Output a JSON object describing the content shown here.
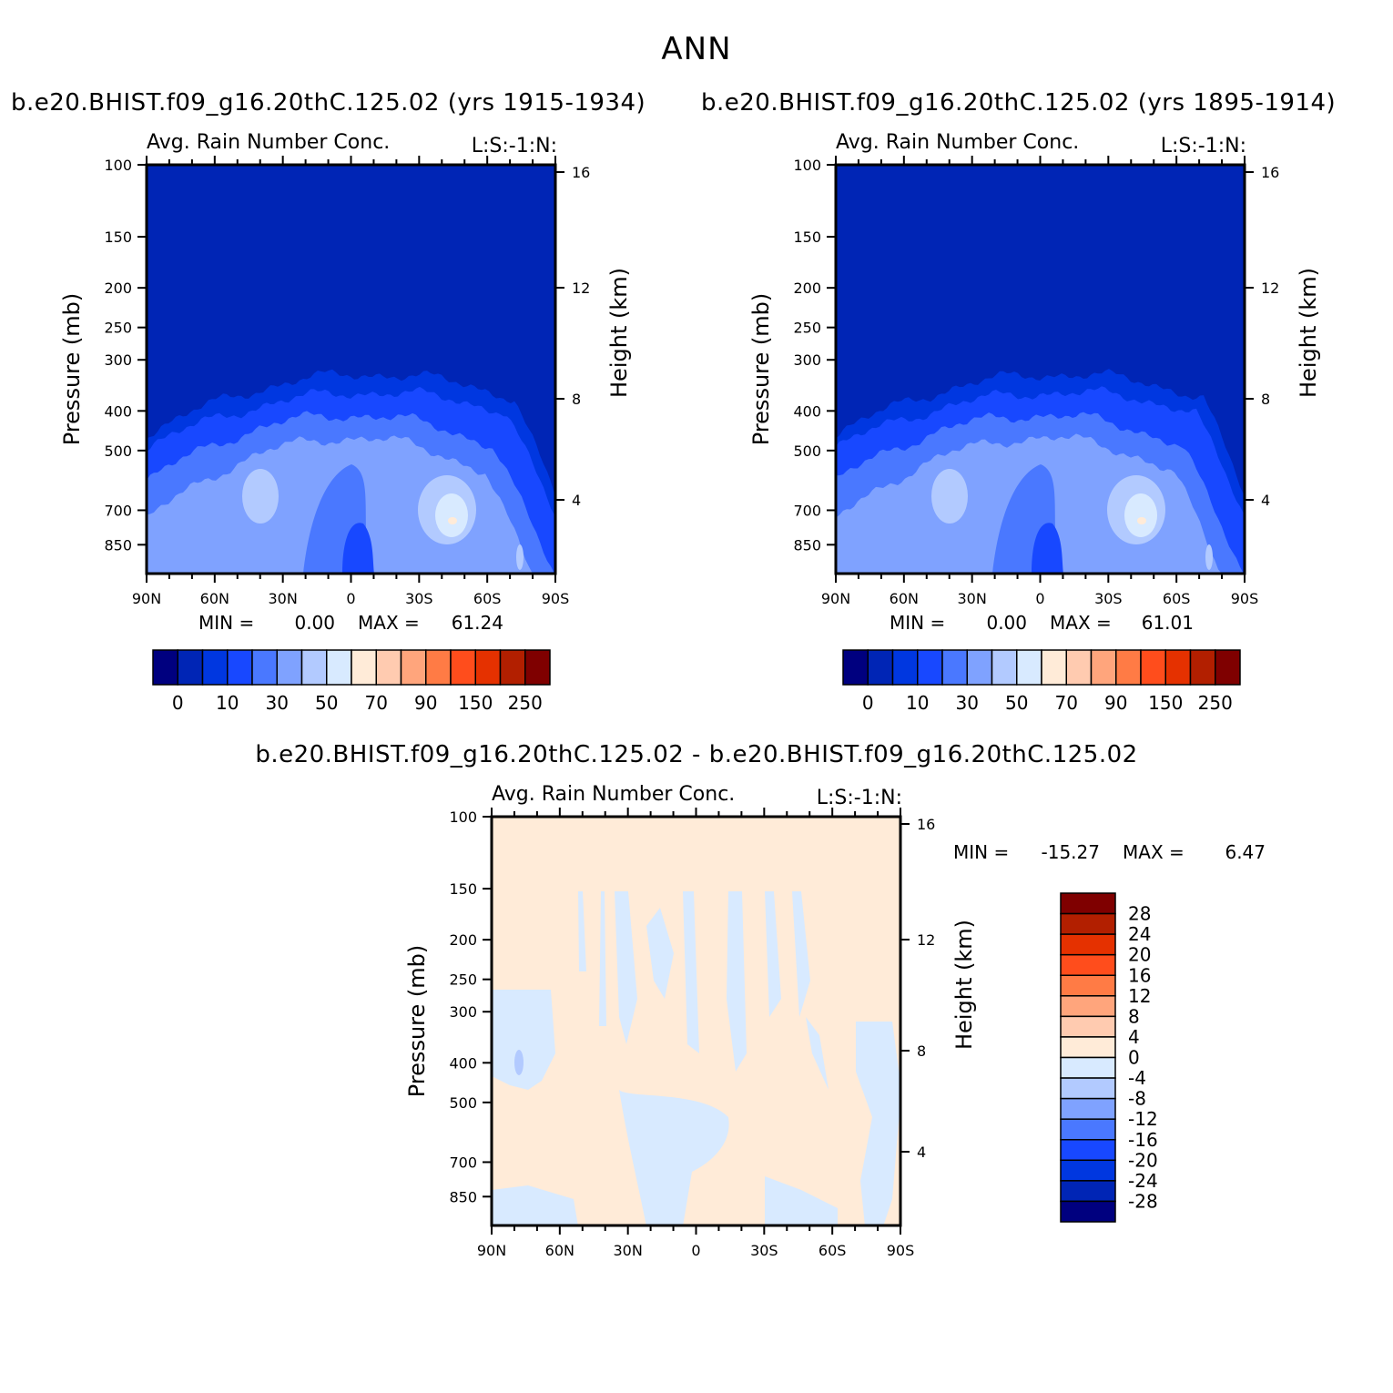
{
  "main_title": "ANN",
  "colors": {
    "abs_palette": [
      "#00007f",
      "#0025b5",
      "#0037e0",
      "#1848ff",
      "#4a78ff",
      "#7fa2ff",
      "#b2caff",
      "#d8eaff",
      "#ffebd8",
      "#ffcbb0",
      "#ffa57c",
      "#ff7b45",
      "#ff4d1c",
      "#e53100",
      "#b21f00",
      "#7f0000"
    ],
    "diff_palette": [
      "#00007f",
      "#0025b5",
      "#0037e0",
      "#1848ff",
      "#4a78ff",
      "#7fa2ff",
      "#b2caff",
      "#d8eaff",
      "#ffebd8",
      "#ffcbb0",
      "#ffa57c",
      "#ff7b45",
      "#ff4d1c",
      "#e53100",
      "#b21f00",
      "#7f0000"
    ]
  },
  "chart_data": [
    {
      "type": "heatmap",
      "case_title": "b.e20.BHIST.f09_g16.20thC.125.02 (yrs 1915-1934)",
      "subtitle": "Avg. Rain Number Conc.",
      "code": "L:S:-1:N:",
      "xlabel": "",
      "ylabel": "Pressure (mb)",
      "y2label": "Height (km)",
      "x_ticks": [
        "90N",
        "60N",
        "30N",
        "0",
        "30S",
        "60S",
        "90S"
      ],
      "y_ticks": [
        100,
        150,
        200,
        250,
        300,
        400,
        500,
        700,
        850
      ],
      "y2_ticks": [
        16,
        12,
        8,
        4
      ],
      "ylim": [
        100,
        1000
      ],
      "min_label": "MIN =",
      "min_value": "0.00",
      "max_label": "MAX =",
      "max_value": "61.24",
      "colorbar_labels": [
        "0",
        "10",
        "30",
        "50",
        "70",
        "90",
        "150",
        "250"
      ]
    },
    {
      "type": "heatmap",
      "case_title": "b.e20.BHIST.f09_g16.20thC.125.02 (yrs 1895-1914)",
      "subtitle": "Avg. Rain Number Conc.",
      "code": "L:S:-1:N:",
      "xlabel": "",
      "ylabel": "Pressure (mb)",
      "y2label": "Height (km)",
      "x_ticks": [
        "90N",
        "60N",
        "30N",
        "0",
        "30S",
        "60S",
        "90S"
      ],
      "y_ticks": [
        100,
        150,
        200,
        250,
        300,
        400,
        500,
        700,
        850
      ],
      "y2_ticks": [
        16,
        12,
        8,
        4
      ],
      "ylim": [
        100,
        1000
      ],
      "min_label": "MIN =",
      "min_value": "0.00",
      "max_label": "MAX =",
      "max_value": "61.01",
      "colorbar_labels": [
        "0",
        "10",
        "30",
        "50",
        "70",
        "90",
        "150",
        "250"
      ]
    },
    {
      "type": "heatmap",
      "case_title": "b.e20.BHIST.f09_g16.20thC.125.02 - b.e20.BHIST.f09_g16.20thC.125.02",
      "subtitle": "Avg. Rain Number Conc.",
      "code": "L:S:-1:N:",
      "xlabel": "",
      "ylabel": "Pressure (mb)",
      "y2label": "Height (km)",
      "x_ticks": [
        "90N",
        "60N",
        "30N",
        "0",
        "30S",
        "60S",
        "90S"
      ],
      "y_ticks": [
        100,
        150,
        200,
        250,
        300,
        400,
        500,
        700,
        850
      ],
      "y2_ticks": [
        16,
        12,
        8,
        4
      ],
      "ylim": [
        100,
        1000
      ],
      "min_label": "MIN =",
      "min_value": "-15.27",
      "max_label": "MAX =",
      "max_value": "6.47",
      "colorbar_labels": [
        "28",
        "24",
        "20",
        "16",
        "12",
        "8",
        "4",
        "0",
        "-4",
        "-8",
        "-12",
        "-16",
        "-20",
        "-24",
        "-28"
      ]
    }
  ]
}
